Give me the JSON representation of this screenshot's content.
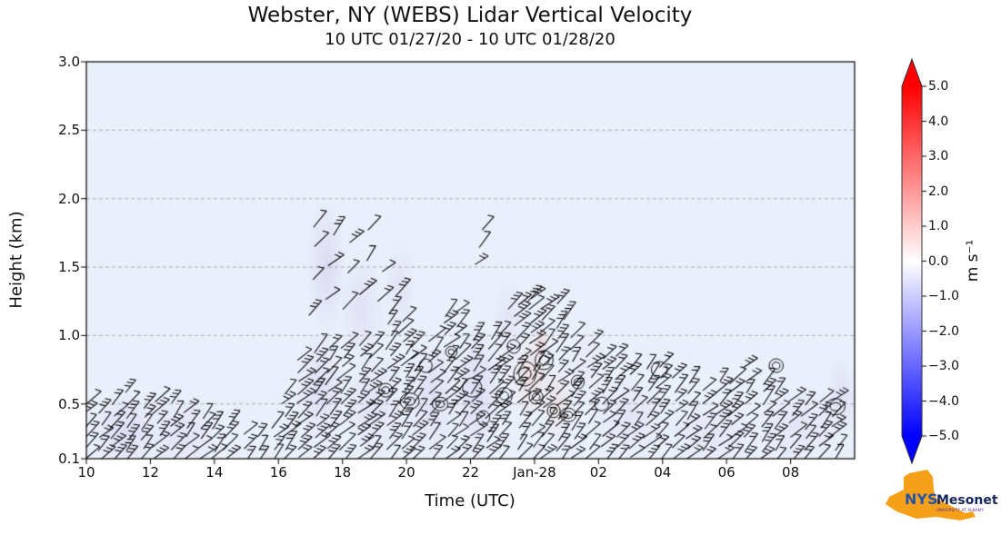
{
  "header": {
    "title": "Webster, NY (WEBS) Lidar Vertical Velocity",
    "subtitle": "10 UTC 01/27/20 - 10 UTC 01/28/20"
  },
  "chart_data": {
    "type": "heatmap",
    "overlay": "wind-barbs",
    "title": "Webster, NY (WEBS) Lidar Vertical Velocity",
    "subtitle": "10 UTC 01/27/20 - 10 UTC 01/28/20",
    "xlabel": "Time (UTC)",
    "ylabel": "Height (km)",
    "x_range_hours": [
      10,
      34
    ],
    "ylim": [
      0.1,
      3.0
    ],
    "x_ticks": [
      {
        "t": 10,
        "label": "10"
      },
      {
        "t": 12,
        "label": "12"
      },
      {
        "t": 14,
        "label": "14"
      },
      {
        "t": 16,
        "label": "16"
      },
      {
        "t": 18,
        "label": "18"
      },
      {
        "t": 20,
        "label": "20"
      },
      {
        "t": 22,
        "label": "22"
      },
      {
        "t": 24,
        "label": "Jan-28"
      },
      {
        "t": 26,
        "label": "02"
      },
      {
        "t": 28,
        "label": "04"
      },
      {
        "t": 30,
        "label": "06"
      },
      {
        "t": 32,
        "label": "08"
      }
    ],
    "y_ticks": [
      {
        "v": 3.0,
        "label": "3.0"
      },
      {
        "v": 2.5,
        "label": "2.5"
      },
      {
        "v": 2.0,
        "label": "2.0"
      },
      {
        "v": 1.5,
        "label": "1.5"
      },
      {
        "v": 1.0,
        "label": "1.0"
      },
      {
        "v": 0.5,
        "label": "0.5"
      },
      {
        "v": 0.1,
        "label": "0.1"
      }
    ],
    "grid_y": [
      0.5,
      1.0,
      1.5,
      2.0,
      2.5
    ],
    "plot_bg_color": "#e9effb",
    "colorbar": {
      "label": "m s⁻¹",
      "vmin": -5,
      "vmax": 5,
      "extend": "both",
      "colors": {
        "max": "#ff0000",
        "mid": "#ffffff",
        "min": "#0000ff"
      },
      "ticks": [
        {
          "v": 5,
          "label": "5.0"
        },
        {
          "v": 4,
          "label": "4.0"
        },
        {
          "v": 3,
          "label": "3.0"
        },
        {
          "v": 2,
          "label": "2.0"
        },
        {
          "v": 1,
          "label": "1.0"
        },
        {
          "v": 0,
          "label": "0.0"
        },
        {
          "v": -1,
          "label": "−1.0"
        },
        {
          "v": -2,
          "label": "−2.0"
        },
        {
          "v": -3,
          "label": "−3.0"
        },
        {
          "v": -4,
          "label": "−4.0"
        },
        {
          "v": -5,
          "label": "−5.0"
        }
      ]
    },
    "wind_barbs": {
      "dt": 0.45,
      "dh": 0.082,
      "base": 0.14,
      "envelope": [
        {
          "t": 10.0,
          "top": 0.62
        },
        {
          "t": 10.8,
          "top": 0.5
        },
        {
          "t": 11.3,
          "top": 0.66
        },
        {
          "t": 12.0,
          "top": 0.52
        },
        {
          "t": 12.7,
          "top": 0.62
        },
        {
          "t": 13.5,
          "top": 0.48
        },
        {
          "t": 14.5,
          "top": 0.42
        },
        {
          "t": 15.5,
          "top": 0.34
        },
        {
          "t": 16.2,
          "top": 0.4
        },
        {
          "t": 16.6,
          "top": 0.9
        },
        {
          "t": 17.2,
          "top": 1.02
        },
        {
          "t": 19.3,
          "top": 1.0
        },
        {
          "t": 19.8,
          "top": 1.45
        },
        {
          "t": 20.2,
          "top": 0.98
        },
        {
          "t": 21.2,
          "top": 1.05
        },
        {
          "t": 21.6,
          "top": 1.3
        },
        {
          "t": 22.2,
          "top": 1.05
        },
        {
          "t": 23.2,
          "top": 1.1
        },
        {
          "t": 23.8,
          "top": 1.4
        },
        {
          "t": 24.6,
          "top": 1.25
        },
        {
          "t": 25.4,
          "top": 1.1
        },
        {
          "t": 26.3,
          "top": 0.95
        },
        {
          "t": 27.5,
          "top": 0.85
        },
        {
          "t": 28.6,
          "top": 0.8
        },
        {
          "t": 29.5,
          "top": 0.65
        },
        {
          "t": 31.0,
          "top": 0.88
        },
        {
          "t": 31.8,
          "top": 0.6
        },
        {
          "t": 32.8,
          "top": 0.55
        },
        {
          "t": 34.0,
          "top": 0.65
        }
      ]
    },
    "elevated_barbs": {
      "format": [
        "t",
        "h"
      ],
      "points": [
        [
          17.15,
          1.2
        ],
        [
          17.25,
          1.45
        ],
        [
          17.35,
          1.7
        ],
        [
          17.3,
          1.85
        ],
        [
          17.7,
          1.3
        ],
        [
          17.8,
          1.55
        ],
        [
          17.9,
          1.8
        ],
        [
          18.25,
          1.25
        ],
        [
          18.35,
          1.5
        ],
        [
          18.45,
          1.72
        ],
        [
          18.8,
          1.35
        ],
        [
          18.9,
          1.6
        ],
        [
          19.0,
          1.82
        ],
        [
          19.35,
          1.3
        ],
        [
          19.45,
          1.5
        ],
        [
          19.9,
          1.35
        ],
        [
          21.4,
          1.2
        ],
        [
          22.35,
          1.55
        ],
        [
          22.45,
          1.7
        ],
        [
          22.55,
          1.82
        ],
        [
          23.4,
          1.25
        ],
        [
          24.0,
          1.3
        ],
        [
          24.9,
          1.28
        ],
        [
          25.1,
          1.18
        ]
      ]
    },
    "contours": {
      "format": [
        "t",
        "h",
        "rt_hours",
        "rh_km"
      ],
      "items": [
        [
          19.35,
          0.6,
          0.22,
          0.05
        ],
        [
          20.1,
          0.52,
          0.3,
          0.06
        ],
        [
          20.6,
          0.78,
          0.2,
          0.05
        ],
        [
          21.05,
          0.5,
          0.25,
          0.05
        ],
        [
          21.4,
          0.88,
          0.18,
          0.04
        ],
        [
          22.05,
          0.62,
          0.3,
          0.07
        ],
        [
          22.4,
          0.4,
          0.2,
          0.05
        ],
        [
          23.05,
          0.56,
          0.25,
          0.06
        ],
        [
          23.35,
          0.92,
          0.2,
          0.05
        ],
        [
          23.7,
          0.72,
          0.35,
          0.09
        ],
        [
          24.05,
          0.55,
          0.22,
          0.05
        ],
        [
          24.3,
          0.82,
          0.28,
          0.07
        ],
        [
          24.6,
          0.45,
          0.2,
          0.05
        ],
        [
          25.05,
          0.42,
          0.25,
          0.05
        ],
        [
          25.35,
          0.66,
          0.2,
          0.05
        ],
        [
          26.1,
          0.5,
          0.22,
          0.05
        ],
        [
          27.9,
          0.75,
          0.25,
          0.06
        ],
        [
          31.55,
          0.78,
          0.22,
          0.05
        ],
        [
          33.4,
          0.48,
          0.3,
          0.06
        ]
      ]
    },
    "shading": {
      "format": [
        "t",
        "h",
        "rt_hours",
        "rh_km",
        "color",
        "alpha"
      ],
      "items": [
        [
          11.2,
          0.3,
          1.0,
          0.3,
          "#cfc8ec",
          0.45
        ],
        [
          13.0,
          0.3,
          1.2,
          0.28,
          "#d8d2f0",
          0.4
        ],
        [
          17.5,
          1.5,
          0.6,
          0.5,
          "#cfc8ec",
          0.5
        ],
        [
          18.6,
          1.2,
          0.7,
          0.4,
          "#d8d2f0",
          0.45
        ],
        [
          19.8,
          1.35,
          0.5,
          0.35,
          "#d8d2f0",
          0.4
        ],
        [
          17.3,
          0.6,
          0.8,
          0.45,
          "#d4cdee",
          0.45
        ],
        [
          19.0,
          0.5,
          1.0,
          0.4,
          "#d8d2f0",
          0.4
        ],
        [
          20.8,
          0.55,
          0.9,
          0.45,
          "#d4cdee",
          0.45
        ],
        [
          22.2,
          0.6,
          0.7,
          0.5,
          "#cfc8ec",
          0.5
        ],
        [
          23.2,
          1.1,
          0.5,
          0.3,
          "#d8d2f0",
          0.4
        ],
        [
          23.9,
          0.7,
          0.6,
          0.3,
          "#f2cfc9",
          0.55
        ],
        [
          24.7,
          0.5,
          0.5,
          0.25,
          "#f2cfc9",
          0.45
        ],
        [
          24.2,
          0.95,
          0.25,
          0.12,
          "#eec2ba",
          0.6
        ],
        [
          25.6,
          0.8,
          0.5,
          0.3,
          "#e8e2f6",
          0.4
        ],
        [
          27.0,
          0.4,
          1.2,
          0.3,
          "#dcd6f2",
          0.4
        ],
        [
          29.5,
          0.3,
          1.5,
          0.25,
          "#dcd6f2",
          0.35
        ],
        [
          32.3,
          0.35,
          1.4,
          0.28,
          "#dcd6f2",
          0.4
        ],
        [
          33.6,
          0.55,
          0.5,
          0.3,
          "#d4cdee",
          0.45
        ]
      ]
    }
  },
  "logo": {
    "nys": "NYS",
    "mesonet": "Mesonet",
    "subtext": "UNIVERSITY AT ALBANY",
    "orange": "#F6A01A",
    "blue": "#2456a4",
    "navy": "#15265c"
  }
}
